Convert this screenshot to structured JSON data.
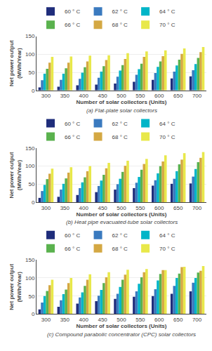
{
  "chart_data": [
    {
      "type": "bar",
      "title": "(a) Flat-plate solar collectors",
      "xlabel": "Number of solar collectors (Units)",
      "ylabel": "Net power output\n(MWh/Year)",
      "categories": [
        "300",
        "350",
        "400",
        "450",
        "500",
        "550",
        "600",
        "650",
        "700"
      ],
      "series": [
        {
          "name": "60 ° C",
          "color": "#1f2d7b",
          "values": [
            8,
            10,
            14,
            16,
            19,
            24,
            29,
            33,
            39
          ]
        },
        {
          "name": "62 ° C",
          "color": "#3a7abf",
          "values": [
            28,
            29,
            32,
            35,
            38,
            43,
            48,
            52,
            56
          ]
        },
        {
          "name": "64 ° C",
          "color": "#00b5c8",
          "values": [
            46,
            46,
            49,
            52,
            55,
            59,
            65,
            69,
            73
          ]
        },
        {
          "name": "66 ° C",
          "color": "#5ab24e",
          "values": [
            60,
            61,
            64,
            67,
            70,
            74,
            80,
            85,
            90
          ]
        },
        {
          "name": "68 ° C",
          "color": "#d4a843",
          "values": [
            77,
            77,
            80,
            84,
            87,
            93,
            95,
            101,
            106
          ]
        },
        {
          "name": "70 ° C",
          "color": "#e8e84a",
          "values": [
            93,
            94,
            96,
            97,
            103,
            108,
            111,
            116,
            120
          ]
        }
      ],
      "ylim": [
        0,
        150
      ],
      "yticks": [
        0,
        50,
        100,
        150
      ],
      "grid": true,
      "legend": "upper left"
    },
    {
      "type": "bar",
      "title": "(b) Heat pipe evacuated-tube solar collectors",
      "xlabel": "Number of solar collectors (Units)",
      "ylabel": "Net power output\n(MWh/Year)",
      "categories": [
        "300",
        "350",
        "400",
        "450",
        "500",
        "550",
        "600",
        "650",
        "700"
      ],
      "series": [
        {
          "name": "60 ° C",
          "color": "#1f2d7b",
          "values": [
            12,
            15,
            20,
            28,
            35,
            39,
            46,
            51,
            52
          ]
        },
        {
          "name": "62 ° C",
          "color": "#3a7abf",
          "values": [
            31,
            35,
            39,
            45,
            50,
            54,
            61,
            65,
            71
          ]
        },
        {
          "name": "64 ° C",
          "color": "#00b5c8",
          "values": [
            48,
            51,
            55,
            60,
            65,
            70,
            80,
            86,
            92
          ]
        },
        {
          "name": "66 ° C",
          "color": "#5ab24e",
          "values": [
            64,
            66,
            69,
            76,
            84,
            90,
            100,
            105,
            111
          ]
        },
        {
          "name": "68 ° C",
          "color": "#d4a843",
          "values": [
            79,
            82,
            86,
            94,
            101,
            106,
            113,
            118,
            123
          ]
        },
        {
          "name": "70 ° C",
          "color": "#e8e84a",
          "values": [
            93,
            97,
            100,
            109,
            115,
            120,
            130,
            136,
            139
          ]
        }
      ],
      "ylim": [
        0,
        150
      ],
      "yticks": [
        0,
        50,
        100,
        150
      ],
      "grid": true,
      "legend": "upper left"
    },
    {
      "type": "bar",
      "title": "(c) Compound parabolic concentrator (CPC) solar collectors",
      "xlabel": "Number of solar collectors (Units)",
      "ylabel": "Net power output\n(MWh/Year)",
      "categories": [
        "300",
        "350",
        "400",
        "450",
        "500",
        "550",
        "600",
        "650",
        "700"
      ],
      "series": [
        {
          "name": "60 ° C",
          "color": "#1f2d7b",
          "values": [
            13,
            20,
            29,
            36,
            42,
            48,
            50,
            56,
            63
          ]
        },
        {
          "name": "62 ° C",
          "color": "#3a7abf",
          "values": [
            32,
            38,
            46,
            51,
            56,
            63,
            69,
            78,
            87
          ]
        },
        {
          "name": "64 ° C",
          "color": "#00b5c8",
          "values": [
            50,
            55,
            60,
            67,
            75,
            84,
            93,
            100,
            100
          ]
        },
        {
          "name": "66 ° C",
          "color": "#5ab24e",
          "values": [
            64,
            68,
            78,
            86,
            95,
            102,
            111,
            112,
            115
          ]
        },
        {
          "name": "68 ° C",
          "color": "#d4a843",
          "values": [
            80,
            86,
            95,
            102,
            109,
            116,
            122,
            130,
            120
          ]
        },
        {
          "name": "70 ° C",
          "color": "#e8e84a",
          "values": [
            95,
            100,
            110,
            116,
            123,
            125,
            122,
            131,
            133
          ]
        }
      ],
      "ylim": [
        0,
        150
      ],
      "yticks": [
        0,
        50,
        100,
        150
      ],
      "grid": true,
      "legend": "upper left"
    }
  ]
}
